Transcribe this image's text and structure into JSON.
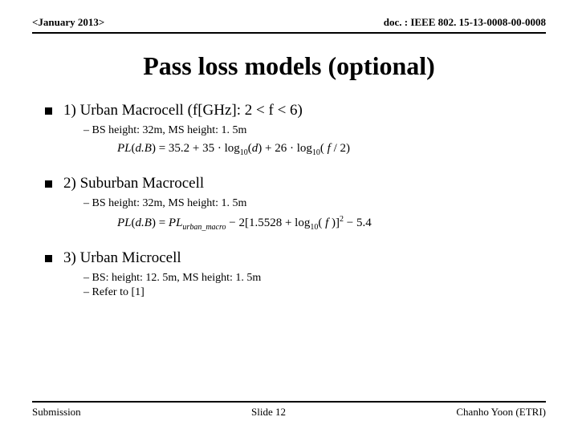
{
  "header": {
    "left": "<January 2013>",
    "right": "doc. : IEEE 802. 15-13-0008-00-0008"
  },
  "title": "Pass loss models (optional)",
  "items": [
    {
      "heading": "1) Urban Macrocell (f[GHz]: 2 < f < 6)",
      "subs": [
        "–  BS height: 32m, MS height: 1. 5m"
      ],
      "formula": "PL(d.B) = 35.2 + 35 · log₁₀(d) + 26 · log₁₀( f / 2)"
    },
    {
      "heading": "2) Suburban Macrocell",
      "subs": [
        "–  BS height: 32m, MS height: 1. 5m"
      ],
      "formula": "PL(d.B) = PL_urban_macro − 2[1.5528 + log₁₀( f )]² − 5.4"
    },
    {
      "heading": "3) Urban Microcell",
      "subs": [
        "–  BS: height: 12. 5m, MS height: 1. 5m",
        "–  Refer to [1]"
      ],
      "formula": null
    }
  ],
  "footer": {
    "left": "Submission",
    "center": "Slide 12",
    "right": "Chanho Yoon (ETRI)"
  }
}
